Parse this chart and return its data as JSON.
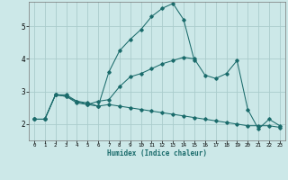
{
  "title": "",
  "xlabel": "Humidex (Indice chaleur)",
  "ylabel": "",
  "bg_color": "#cce8e8",
  "grid_color": "#aacccc",
  "line_color": "#1a6b6b",
  "xlim": [
    -0.5,
    23.5
  ],
  "ylim": [
    1.5,
    5.75
  ],
  "xticks": [
    0,
    1,
    2,
    3,
    4,
    5,
    6,
    7,
    8,
    9,
    10,
    11,
    12,
    13,
    14,
    15,
    16,
    17,
    18,
    19,
    20,
    21,
    22,
    23
  ],
  "yticks": [
    2,
    3,
    4,
    5
  ],
  "lines": [
    {
      "x": [
        0,
        1,
        2,
        3,
        4,
        5,
        6,
        7,
        8,
        9,
        10,
        11,
        12,
        13,
        14,
        15
      ],
      "y": [
        2.15,
        2.15,
        2.9,
        2.9,
        2.7,
        2.65,
        2.55,
        3.6,
        4.25,
        4.6,
        4.9,
        5.3,
        5.55,
        5.7,
        5.2,
        3.95
      ]
    },
    {
      "x": [
        0,
        1,
        2,
        3,
        4,
        5,
        6,
        7,
        8,
        9,
        10,
        11,
        12,
        13,
        14,
        15,
        16,
        17,
        18,
        19,
        20,
        21,
        22,
        23
      ],
      "y": [
        2.15,
        2.15,
        2.9,
        2.85,
        2.65,
        2.6,
        2.7,
        2.75,
        3.15,
        3.45,
        3.55,
        3.7,
        3.85,
        3.95,
        4.05,
        4.0,
        3.5,
        3.4,
        3.55,
        3.95,
        2.45,
        1.85,
        2.15,
        1.95
      ]
    },
    {
      "x": [
        0,
        1,
        2,
        3,
        4,
        5,
        6,
        7,
        8,
        9,
        10,
        11,
        12,
        13,
        14,
        15,
        16,
        17,
        18,
        19,
        20,
        21,
        22,
        23
      ],
      "y": [
        2.15,
        2.15,
        2.9,
        2.85,
        2.7,
        2.6,
        2.55,
        2.6,
        2.55,
        2.5,
        2.45,
        2.4,
        2.35,
        2.3,
        2.25,
        2.2,
        2.15,
        2.1,
        2.05,
        2.0,
        1.95,
        1.95,
        1.95,
        1.9
      ]
    }
  ]
}
